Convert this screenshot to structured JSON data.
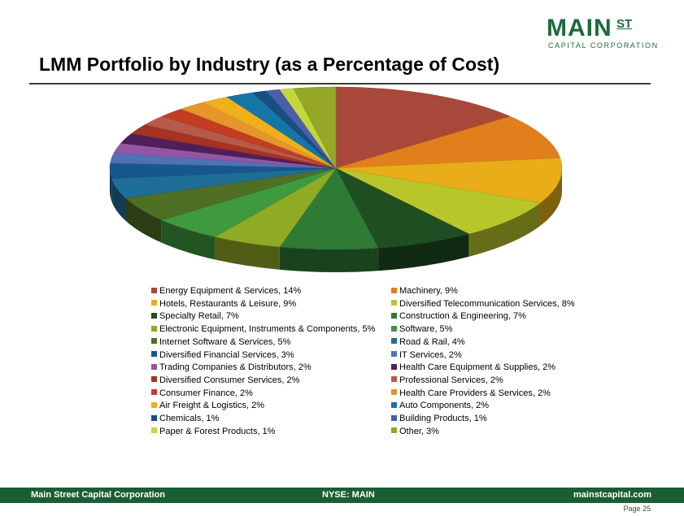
{
  "logo": {
    "main": "MAIN",
    "st": "ST",
    "sub": "CAPITAL CORPORATION"
  },
  "title": "LMM Portfolio by Industry (as a Percentage of Cost)",
  "chart_data": {
    "type": "pie",
    "title": "LMM Portfolio by Industry (as a Percentage of Cost)",
    "legend_position": "bottom",
    "slices": [
      {
        "label": "Energy Equipment & Services, 14%",
        "value": 14,
        "color": "#a8483a"
      },
      {
        "label": "Machinery, 9%",
        "value": 9,
        "color": "#e07f1c"
      },
      {
        "label": "Hotels, Restaurants & Leisure, 9%",
        "value": 9,
        "color": "#e8ad18"
      },
      {
        "label": "Diversified Telecommunication Services, 8%",
        "value": 8,
        "color": "#b8c62a"
      },
      {
        "label": "Specialty Retail, 7%",
        "value": 7,
        "color": "#1f4e23"
      },
      {
        "label": "Construction & Engineering, 7%",
        "value": 7,
        "color": "#2f7a34"
      },
      {
        "label": "Electronic Equipment, Instruments & Components, 5%",
        "value": 5,
        "color": "#8faa24"
      },
      {
        "label": "Software, 5%",
        "value": 5,
        "color": "#3f9a3f"
      },
      {
        "label": "Internet Software & Services, 5%",
        "value": 5,
        "color": "#4f6f24"
      },
      {
        "label": "Road & Rail, 4%",
        "value": 4,
        "color": "#1e6f98"
      },
      {
        "label": "Diversified Financial Services, 3%",
        "value": 3,
        "color": "#17578e"
      },
      {
        "label": "IT Services, 2%",
        "value": 2,
        "color": "#4d73b6"
      },
      {
        "label": "Trading Companies & Distributors, 2%",
        "value": 2,
        "color": "#9356a6"
      },
      {
        "label": "Health Care Equipment & Supplies, 2%",
        "value": 2,
        "color": "#4f1f59"
      },
      {
        "label": "Diversified Consumer Services, 2%",
        "value": 2,
        "color": "#a53223"
      },
      {
        "label": "Professional Services, 2%",
        "value": 2,
        "color": "#b85a4a"
      },
      {
        "label": "Consumer Finance, 2%",
        "value": 2,
        "color": "#c23d22"
      },
      {
        "label": "Health Care Providers & Services, 2%",
        "value": 2,
        "color": "#e6952a"
      },
      {
        "label": "Air Freight & Logistics, 2%",
        "value": 2,
        "color": "#f0b01b"
      },
      {
        "label": "Auto Components, 2%",
        "value": 2,
        "color": "#1576a6"
      },
      {
        "label": "Chemicals, 1%",
        "value": 1,
        "color": "#154f86"
      },
      {
        "label": "Building Products, 1%",
        "value": 1,
        "color": "#4b5ea8"
      },
      {
        "label": "Paper & Forest Products, 1%",
        "value": 1,
        "color": "#c4d63c"
      },
      {
        "label": "Other, 3%",
        "value": 3,
        "color": "#95a727"
      }
    ]
  },
  "footer": {
    "left": "Main Street Capital Corporation",
    "center": "NYSE: MAIN",
    "right": "mainstcapital.com"
  },
  "page_label": "Page 25"
}
